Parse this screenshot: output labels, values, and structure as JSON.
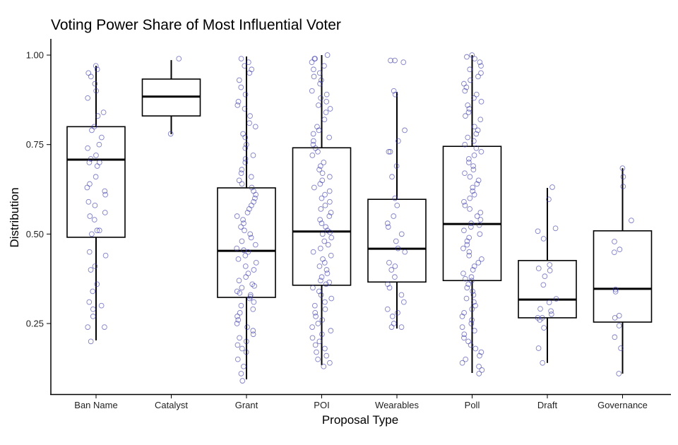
{
  "chart_data": {
    "type": "boxplot",
    "title": "Voting Power Share of Most Influential Voter",
    "xlabel": "Proposal Type",
    "ylabel": "Distribution",
    "ylim": [
      0.05,
      1.03
    ],
    "yticks": [
      0.25,
      0.5,
      0.75,
      1.0
    ],
    "ytick_labels": [
      "0.25",
      "0.50",
      "0.75",
      "1.00"
    ],
    "grid": false,
    "legend": "none",
    "colors": {
      "box": "#000000",
      "points": "#3a3aa8"
    },
    "categories": [
      "Ban Name",
      "Catalyst",
      "Grant",
      "POI",
      "Wearables",
      "Poll",
      "Draft",
      "Governance"
    ],
    "boxes": [
      {
        "category": "Ban Name",
        "whisker_low": 0.203,
        "q1": 0.491,
        "median": 0.708,
        "q3": 0.8,
        "whisker_high": 0.97
      },
      {
        "category": "Catalyst",
        "whisker_low": 0.779,
        "q1": 0.83,
        "median": 0.884,
        "q3": 0.933,
        "whisker_high": 0.986
      },
      {
        "category": "Grant",
        "whisker_low": 0.094,
        "q1": 0.323,
        "median": 0.453,
        "q3": 0.629,
        "whisker_high": 0.996
      },
      {
        "category": "POI",
        "whisker_low": 0.134,
        "q1": 0.357,
        "median": 0.507,
        "q3": 0.741,
        "whisker_high": 1.0
      },
      {
        "category": "Wearables",
        "whisker_low": 0.236,
        "q1": 0.366,
        "median": 0.459,
        "q3": 0.597,
        "whisker_high": 0.897
      },
      {
        "category": "Poll",
        "whisker_low": 0.112,
        "q1": 0.37,
        "median": 0.528,
        "q3": 0.745,
        "whisker_high": 1.0
      },
      {
        "category": "Draft",
        "whisker_low": 0.14,
        "q1": 0.266,
        "median": 0.317,
        "q3": 0.426,
        "whisker_high": 0.629
      },
      {
        "category": "Governance",
        "whisker_low": 0.11,
        "q1": 0.254,
        "median": 0.347,
        "q3": 0.509,
        "whisker_high": 0.684
      }
    ],
    "points": {
      "Ban Name": [
        0.97,
        0.96,
        0.95,
        0.94,
        0.92,
        0.9,
        0.88,
        0.84,
        0.83,
        0.8,
        0.79,
        0.77,
        0.75,
        0.74,
        0.72,
        0.71,
        0.7,
        0.7,
        0.69,
        0.66,
        0.64,
        0.63,
        0.62,
        0.61,
        0.59,
        0.58,
        0.56,
        0.55,
        0.54,
        0.51,
        0.51,
        0.5,
        0.45,
        0.44,
        0.41,
        0.4,
        0.36,
        0.34,
        0.31,
        0.3,
        0.29,
        0.27,
        0.24,
        0.24,
        0.2
      ],
      "Catalyst": [
        0.99,
        0.78
      ],
      "Grant": [
        0.99,
        0.98,
        0.97,
        0.96,
        0.95,
        0.93,
        0.91,
        0.89,
        0.87,
        0.86,
        0.85,
        0.83,
        0.81,
        0.8,
        0.78,
        0.77,
        0.75,
        0.74,
        0.72,
        0.71,
        0.7,
        0.68,
        0.67,
        0.66,
        0.65,
        0.64,
        0.63,
        0.62,
        0.61,
        0.6,
        0.59,
        0.58,
        0.57,
        0.56,
        0.55,
        0.54,
        0.53,
        0.52,
        0.51,
        0.5,
        0.49,
        0.48,
        0.47,
        0.46,
        0.455,
        0.45,
        0.44,
        0.43,
        0.42,
        0.41,
        0.4,
        0.39,
        0.38,
        0.37,
        0.36,
        0.355,
        0.35,
        0.34,
        0.335,
        0.33,
        0.325,
        0.32,
        0.31,
        0.3,
        0.29,
        0.28,
        0.27,
        0.26,
        0.25,
        0.24,
        0.23,
        0.22,
        0.21,
        0.2,
        0.19,
        0.18,
        0.17,
        0.15,
        0.13,
        0.11,
        0.09
      ],
      "POI": [
        1.0,
        0.99,
        0.99,
        0.98,
        0.97,
        0.96,
        0.95,
        0.94,
        0.93,
        0.92,
        0.9,
        0.89,
        0.88,
        0.87,
        0.86,
        0.85,
        0.84,
        0.82,
        0.8,
        0.79,
        0.78,
        0.77,
        0.76,
        0.75,
        0.74,
        0.73,
        0.72,
        0.7,
        0.69,
        0.68,
        0.67,
        0.66,
        0.65,
        0.64,
        0.63,
        0.62,
        0.61,
        0.6,
        0.59,
        0.58,
        0.57,
        0.56,
        0.55,
        0.54,
        0.53,
        0.52,
        0.51,
        0.505,
        0.5,
        0.49,
        0.48,
        0.47,
        0.46,
        0.45,
        0.44,
        0.43,
        0.42,
        0.41,
        0.4,
        0.39,
        0.38,
        0.37,
        0.365,
        0.36,
        0.35,
        0.34,
        0.33,
        0.32,
        0.31,
        0.3,
        0.29,
        0.28,
        0.27,
        0.26,
        0.25,
        0.24,
        0.23,
        0.22,
        0.21,
        0.2,
        0.19,
        0.18,
        0.17,
        0.16,
        0.15,
        0.14,
        0.13
      ],
      "Wearables": [
        0.985,
        0.98,
        0.985,
        0.9,
        0.89,
        0.79,
        0.76,
        0.73,
        0.73,
        0.69,
        0.66,
        0.6,
        0.58,
        0.55,
        0.53,
        0.52,
        0.5,
        0.48,
        0.46,
        0.45,
        0.42,
        0.41,
        0.4,
        0.38,
        0.36,
        0.35,
        0.33,
        0.31,
        0.29,
        0.28,
        0.27,
        0.25,
        0.24,
        0.24
      ],
      "Poll": [
        1.0,
        0.995,
        0.99,
        0.98,
        0.97,
        0.96,
        0.95,
        0.94,
        0.93,
        0.92,
        0.91,
        0.9,
        0.89,
        0.88,
        0.87,
        0.86,
        0.85,
        0.84,
        0.83,
        0.82,
        0.8,
        0.79,
        0.78,
        0.77,
        0.76,
        0.75,
        0.74,
        0.73,
        0.72,
        0.71,
        0.7,
        0.69,
        0.68,
        0.67,
        0.66,
        0.65,
        0.64,
        0.63,
        0.62,
        0.61,
        0.6,
        0.59,
        0.58,
        0.57,
        0.56,
        0.55,
        0.54,
        0.53,
        0.525,
        0.52,
        0.51,
        0.5,
        0.49,
        0.48,
        0.47,
        0.46,
        0.45,
        0.44,
        0.43,
        0.42,
        0.41,
        0.4,
        0.39,
        0.38,
        0.375,
        0.37,
        0.36,
        0.35,
        0.34,
        0.33,
        0.32,
        0.31,
        0.3,
        0.29,
        0.28,
        0.27,
        0.26,
        0.25,
        0.24,
        0.23,
        0.22,
        0.21,
        0.2,
        0.19,
        0.18,
        0.17,
        0.16,
        0.15,
        0.14,
        0.13,
        0.12,
        0.11
      ],
      "Draft": [
        0.631,
        0.597,
        0.516,
        0.508,
        0.487,
        0.414,
        0.404,
        0.398,
        0.382,
        0.358,
        0.319,
        0.309,
        0.291,
        0.285,
        0.276,
        0.266,
        0.266,
        0.26,
        0.238,
        0.181,
        0.14
      ],
      "Governance": [
        0.684,
        0.66,
        0.633,
        0.538,
        0.479,
        0.457,
        0.449,
        0.345,
        0.339,
        0.272,
        0.266,
        0.244,
        0.212,
        0.181,
        0.11
      ]
    }
  }
}
